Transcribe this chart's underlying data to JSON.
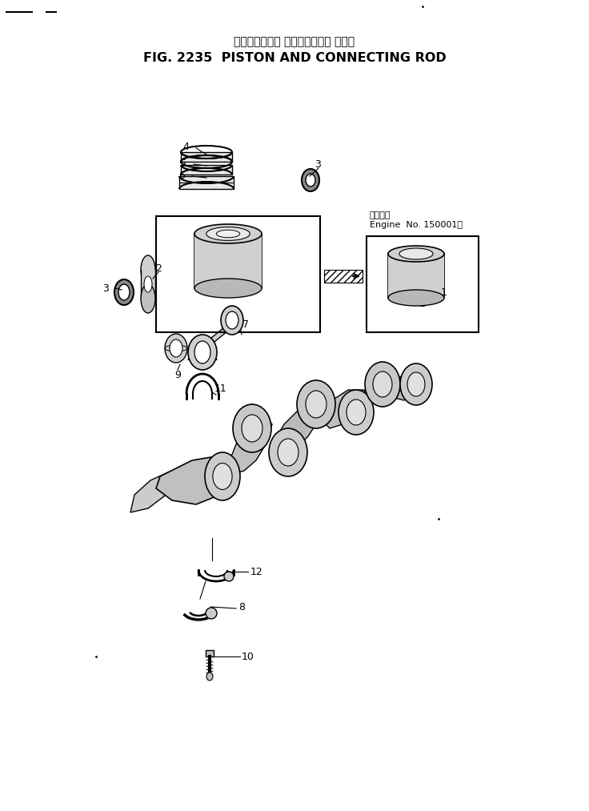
{
  "title_japanese": "ピストンおよび コネクティング ロッド",
  "title_english": "FIG. 2235  PISTON AND CONNECTING ROD",
  "bg_color": "#ffffff",
  "fig_width": 7.36,
  "fig_height": 10.13,
  "dpi": 100,
  "annotation_japanese": "適用号機",
  "annotation_english": "Engine  No. 150001～",
  "line_color": "#000000",
  "text_color": "#000000"
}
